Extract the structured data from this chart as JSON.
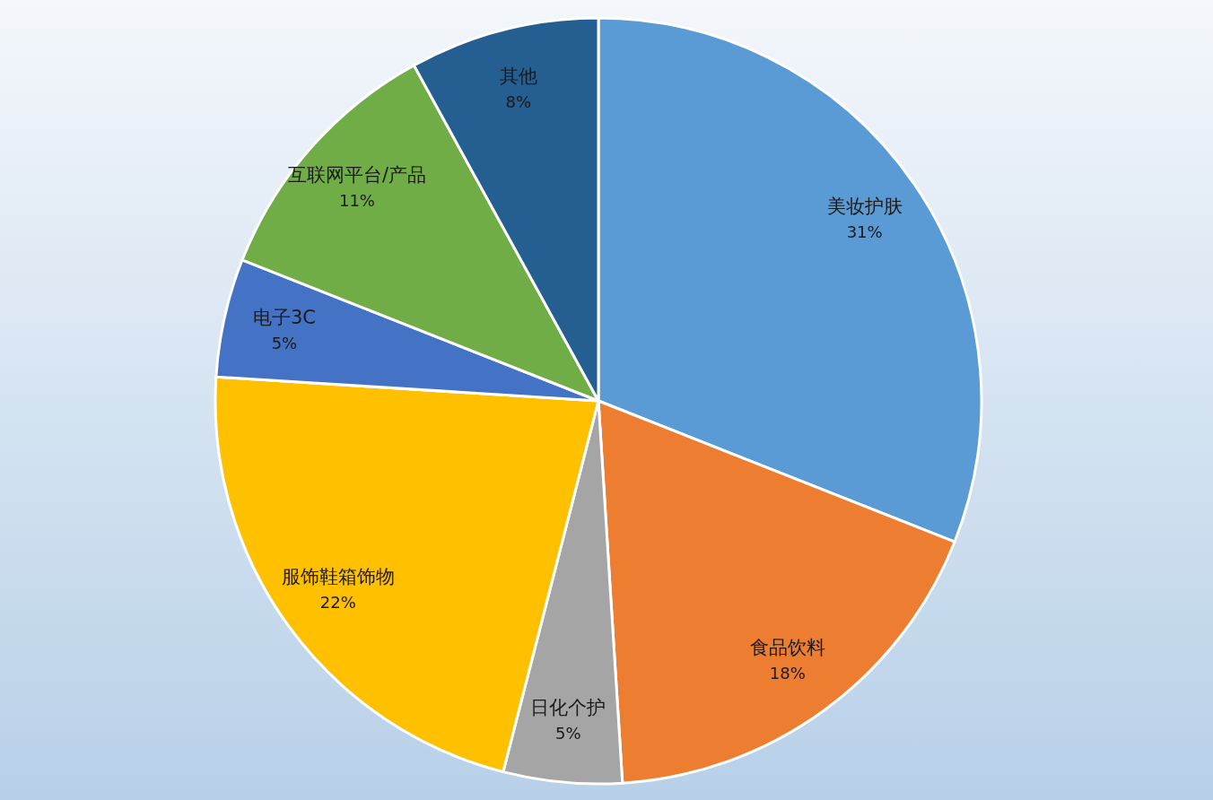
{
  "chart_data": {
    "type": "pie",
    "categories": [
      "美妆护肤",
      "食品饮料",
      "日化个护",
      "服饰鞋箱饰物",
      "电子3C",
      "互联网平台/产品",
      "其他"
    ],
    "values": [
      31,
      18,
      5,
      22,
      5,
      11,
      8
    ],
    "value_labels": [
      "31%",
      "18%",
      "5%",
      "22%",
      "5%",
      "11%",
      "8%"
    ],
    "colors": [
      "#5b9bd5",
      "#ed7d31",
      "#a5a5a5",
      "#ffc000",
      "#4472c4",
      "#70ad47",
      "#255e91"
    ]
  }
}
